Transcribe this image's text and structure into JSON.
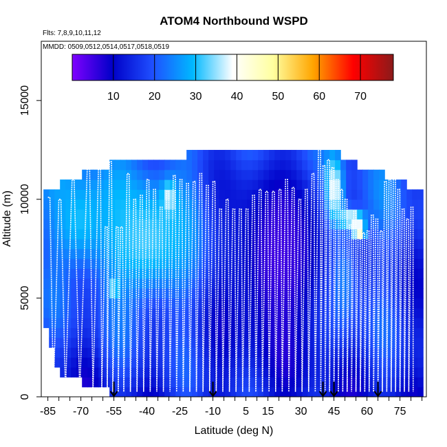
{
  "chart_data": {
    "type": "heatmap",
    "title": "ATOM4 Northbound WSPD",
    "flights_label": "Flts: 7,8,9,10,11,12",
    "dates_label": "MMDD: 0509,0512,0514,0517,0518,0519",
    "xlabel": "Latitude (deg N)",
    "ylabel": "Altitude (m)",
    "xlim": [
      -88,
      87
    ],
    "ylim": [
      0,
      18000
    ],
    "x_ticks": [
      -85,
      -70,
      -55,
      -40,
      -25,
      -10,
      5,
      15,
      30,
      45,
      60,
      75
    ],
    "x_tick_labels": [
      "-85",
      "-70",
      "-55",
      "-40",
      "-25",
      "-10",
      "5",
      "15",
      "30",
      "45",
      "60",
      "75"
    ],
    "y_ticks": [
      0,
      5000,
      10000,
      15000
    ],
    "y_tick_labels": [
      "0",
      "5000",
      "10000",
      "15000"
    ],
    "colorbar": {
      "range": [
        0,
        78
      ],
      "ticks": [
        10,
        20,
        30,
        40,
        50,
        60,
        70
      ],
      "tick_labels": [
        "10",
        "20",
        "30",
        "40",
        "50",
        "60",
        "70"
      ],
      "colors": [
        "#7f00ff",
        "#0000c8",
        "#1f4fff",
        "#00b8ff",
        "#ffffff",
        "#ffffa0",
        "#ffa500",
        "#ff0000",
        "#8b1a1a"
      ]
    },
    "coverage_top_m": [
      {
        "lat": -85,
        "alt": 10400
      },
      {
        "lat": -70,
        "alt": 11200
      },
      {
        "lat": -55,
        "alt": 11900
      },
      {
        "lat": -40,
        "alt": 11900
      },
      {
        "lat": -25,
        "alt": 11900
      },
      {
        "lat": -20,
        "alt": 12500
      },
      {
        "lat": -10,
        "alt": 12500
      },
      {
        "lat": 5,
        "alt": 12500
      },
      {
        "lat": 15,
        "alt": 12500
      },
      {
        "lat": 30,
        "alt": 12500
      },
      {
        "lat": 45,
        "alt": 12500
      },
      {
        "lat": 60,
        "alt": 11500
      },
      {
        "lat": 75,
        "alt": 11000
      },
      {
        "lat": 80,
        "alt": 10500
      }
    ],
    "coverage_bottom_m": [
      {
        "lat": -85,
        "alt": 3300
      },
      {
        "lat": -80,
        "alt": 1000
      },
      {
        "lat": -75,
        "alt": 900
      },
      {
        "lat": -63,
        "alt": 500
      },
      {
        "lat": -55,
        "alt": 200
      },
      {
        "lat": 80,
        "alt": 200
      }
    ],
    "wind_features": [
      {
        "lat": -30,
        "alt": 10000,
        "wspd": 48,
        "radius_deg": 3,
        "radius_m": 800
      },
      {
        "lat": -55,
        "alt": 5500,
        "wspd": 45,
        "radius_deg": 2,
        "radius_m": 400
      },
      {
        "lat": 45,
        "alt": 10200,
        "wspd": 52,
        "radius_deg": 4,
        "radius_m": 1800
      },
      {
        "lat": 52,
        "alt": 9000,
        "wspd": 55,
        "radius_deg": 6,
        "radius_m": 500
      },
      {
        "lat": 56,
        "alt": 8400,
        "wspd": 60,
        "radius_deg": 3,
        "radius_m": 400
      },
      {
        "lat": -40,
        "alt": 8000,
        "wspd": 32,
        "radius_deg": 25,
        "radius_m": 3500
      },
      {
        "lat": -70,
        "alt": 9000,
        "wspd": 30,
        "radius_deg": 15,
        "radius_m": 2500
      },
      {
        "lat": 48,
        "alt": 6000,
        "wspd": 30,
        "radius_deg": 8,
        "radius_m": 3000
      },
      {
        "lat": 20,
        "alt": 7000,
        "wspd": 5,
        "radius_deg": 25,
        "radius_m": 5000
      }
    ],
    "flight_track_turn_lats": [
      -85,
      -80,
      -74,
      -67,
      -62,
      -59,
      -57,
      -54,
      -52,
      -49,
      -46,
      -43,
      -40,
      -37,
      -34,
      -31,
      -28,
      -25,
      -22,
      -19,
      -16,
      -13,
      -10,
      -7,
      -4,
      -1,
      2,
      5,
      8,
      11,
      14,
      17,
      20,
      23,
      26,
      29,
      32,
      35,
      38,
      40,
      42,
      44,
      46,
      48,
      50,
      52,
      54,
      56,
      58,
      60,
      62,
      64,
      66,
      68,
      70,
      72,
      74,
      76,
      78,
      80
    ],
    "flight_track_top_alts": [
      10100,
      10000,
      11000,
      11900,
      11600,
      8600,
      11900,
      8600,
      8600,
      11300,
      10000,
      10200,
      11000,
      10500,
      9600,
      10400,
      11200,
      11000,
      10800,
      10900,
      11300,
      10700,
      10900,
      9500,
      10000,
      9500,
      9500,
      9500,
      10200,
      10500,
      10400,
      10400,
      10500,
      11000,
      10600,
      10000,
      10500,
      11300,
      12900,
      11700,
      12000,
      11600,
      11000,
      10500,
      10000,
      8700,
      9400,
      8500,
      8300,
      8400,
      9200,
      9000,
      8400,
      10900,
      11000,
      11200,
      10500,
      9500,
      9000,
      9600
    ],
    "arrow_markers_lat": [
      -55,
      -10,
      40,
      45,
      65
    ]
  }
}
